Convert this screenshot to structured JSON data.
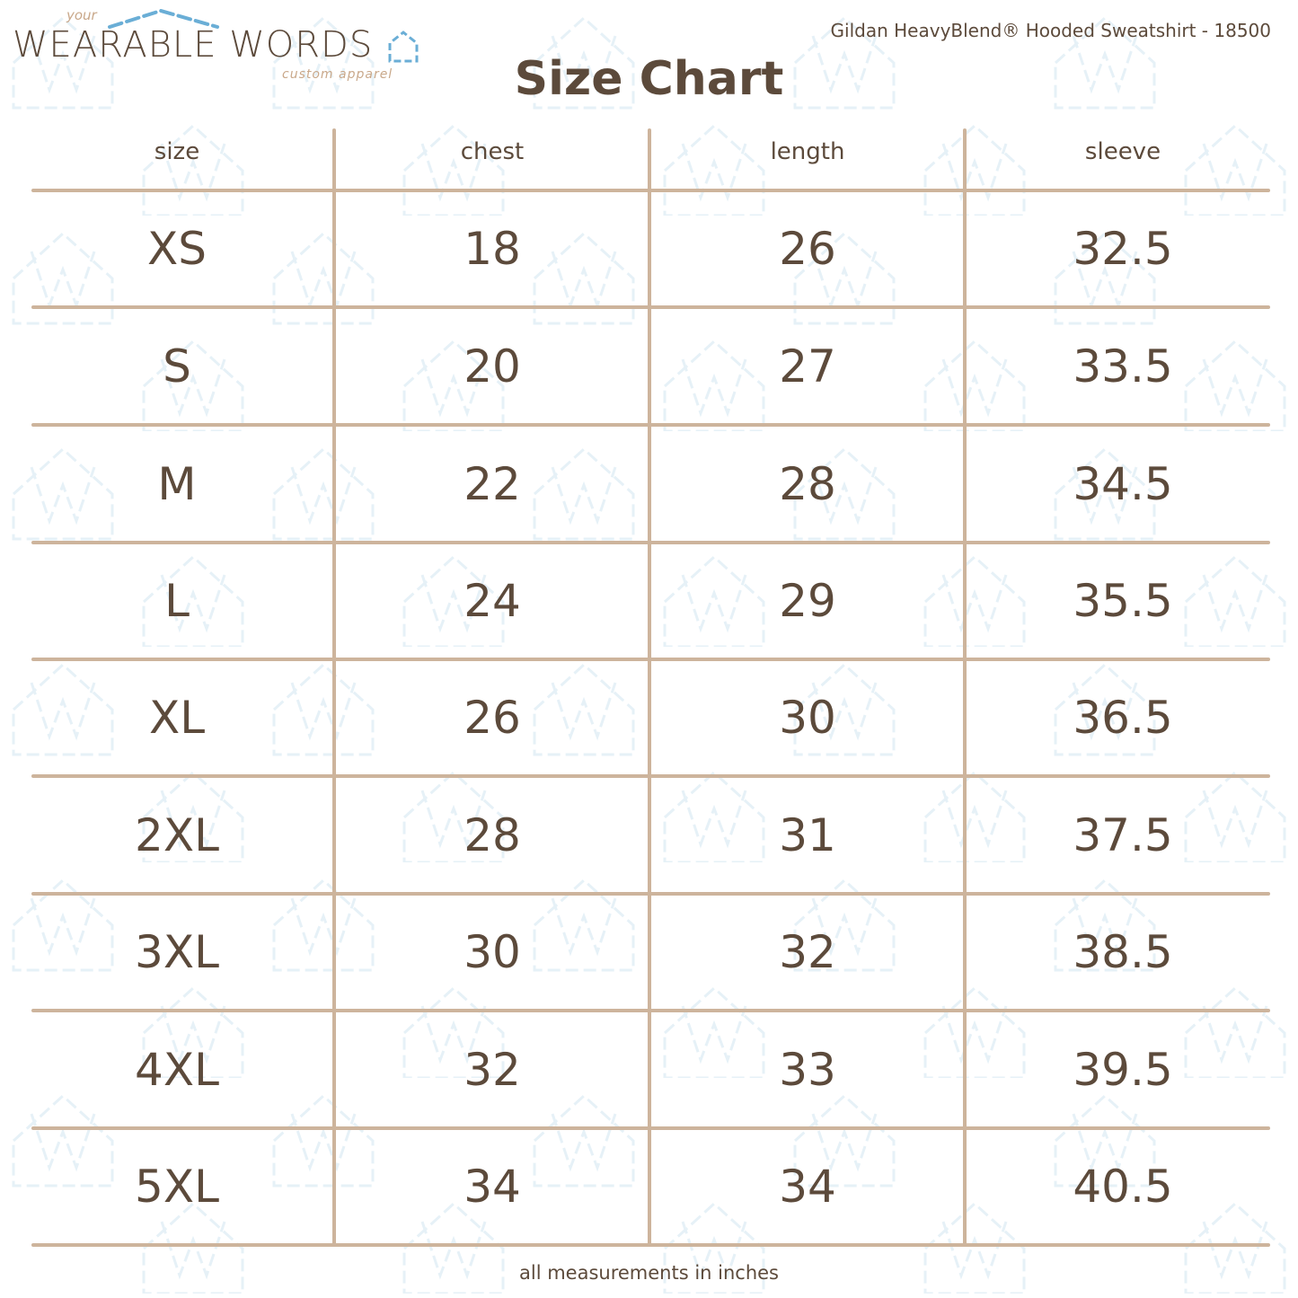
{
  "brand": {
    "logo_text": "WEARABLE WORDS",
    "logo_prefix": "your",
    "logo_tagline": "custom apparel",
    "colors": {
      "text": "#5c4a3b",
      "accent": "#6aaed6",
      "tan": "#c9a88a"
    }
  },
  "product": "Gildan HeavyBlend® Hooded Sweatshirt - 18500",
  "title": "Size Chart",
  "table": {
    "headers": [
      "size",
      "chest",
      "length",
      "sleeve"
    ],
    "rows": [
      [
        "XS",
        "18",
        "26",
        "32.5"
      ],
      [
        "S",
        "20",
        "27",
        "33.5"
      ],
      [
        "M",
        "22",
        "28",
        "34.5"
      ],
      [
        "L",
        "24",
        "29",
        "35.5"
      ],
      [
        "XL",
        "26",
        "30",
        "36.5"
      ],
      [
        "2XL",
        "28",
        "31",
        "37.5"
      ],
      [
        "3XL",
        "30",
        "32",
        "38.5"
      ],
      [
        "4XL",
        "32",
        "33",
        "39.5"
      ],
      [
        "5XL",
        "34",
        "34",
        "40.5"
      ]
    ]
  },
  "footer": "all measurements in inches"
}
